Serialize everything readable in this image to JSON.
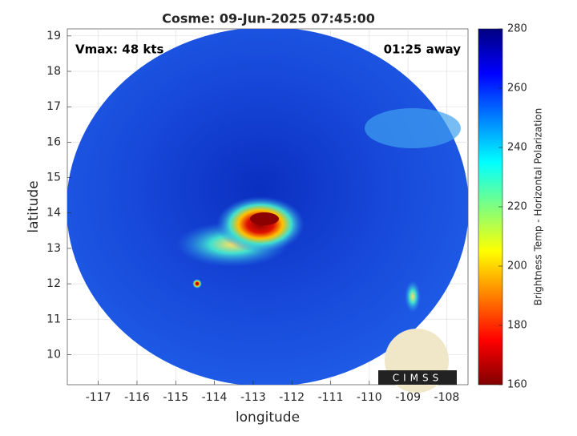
{
  "chart_data": {
    "type": "image",
    "title": "Cosme: 09-Jun-2025 07:45:00",
    "annotations": [
      "Vmax: 48 kts",
      "01:25 away"
    ],
    "x_label": "longitude",
    "y_label": "latitude",
    "xlim": [
      -117.8,
      -107.45
    ],
    "ylim": [
      9.15,
      19.2
    ],
    "xticks": [
      -117,
      -116,
      -115,
      -114,
      -113,
      -112,
      -111,
      -110,
      -109,
      -108
    ],
    "yticks": [
      10,
      11,
      12,
      13,
      14,
      15,
      16,
      17,
      18,
      19
    ],
    "grid": true,
    "colorbar": {
      "label": "Brightness Temp - Horizontal Polarization",
      "clim": [
        160,
        280
      ],
      "ticks": [
        160,
        180,
        200,
        220,
        240,
        260,
        280
      ],
      "colormap": "jet"
    },
    "logo_text": "CIMSS"
  }
}
